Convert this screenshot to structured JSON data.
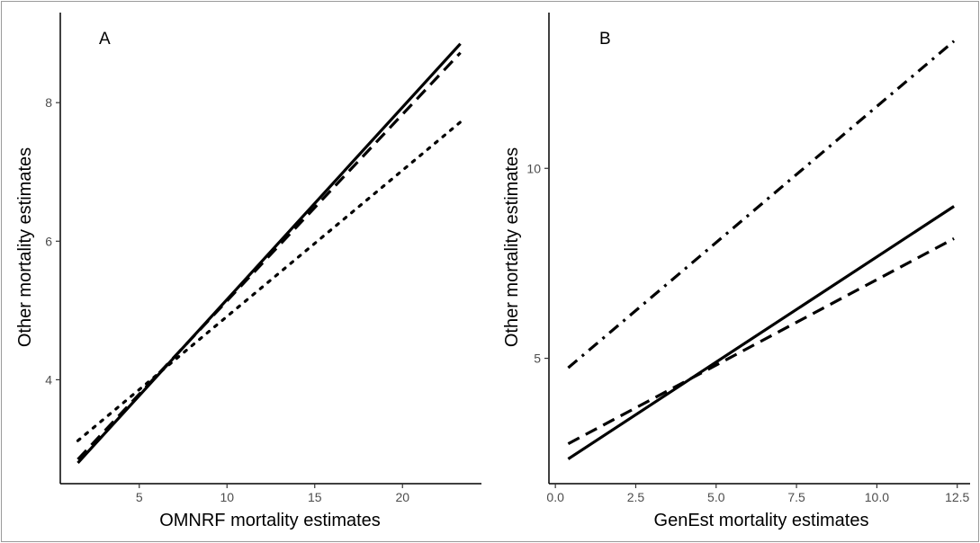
{
  "chart_data": [
    {
      "type": "line",
      "panel_label": "A",
      "xlabel": "OMNRF mortality estimates",
      "ylabel": "Other mortality estimates",
      "xlim": [
        0.5,
        24.5
      ],
      "ylim": [
        2.5,
        9.3
      ],
      "xticks": [
        5,
        10,
        15,
        20
      ],
      "yticks": [
        4,
        6,
        8
      ],
      "grid": false,
      "series": [
        {
          "style": "solid",
          "x": [
            1.5,
            23.3
          ],
          "y": [
            2.8,
            8.85
          ]
        },
        {
          "style": "dashed",
          "x": [
            1.5,
            23.3
          ],
          "y": [
            2.85,
            8.72
          ]
        },
        {
          "style": "dotted",
          "x": [
            1.5,
            23.3
          ],
          "y": [
            3.12,
            7.72
          ]
        }
      ]
    },
    {
      "type": "line",
      "panel_label": "B",
      "xlabel": "GenEst mortality estimates",
      "ylabel": "Other mortality estimates",
      "xlim": [
        -0.2,
        12.9
      ],
      "ylim": [
        1.7,
        14.1
      ],
      "xticks": [
        "0.0",
        "2.5",
        "5.0",
        "7.5",
        "10.0",
        "12.5"
      ],
      "yticks": [
        5,
        10
      ],
      "grid": false,
      "series": [
        {
          "style": "solid",
          "x": [
            0.4,
            12.4
          ],
          "y": [
            2.35,
            9.0
          ]
        },
        {
          "style": "dashed",
          "x": [
            0.4,
            12.4
          ],
          "y": [
            2.75,
            8.15
          ]
        },
        {
          "style": "dashdot",
          "x": [
            0.4,
            12.4
          ],
          "y": [
            4.75,
            13.35
          ]
        }
      ]
    }
  ]
}
